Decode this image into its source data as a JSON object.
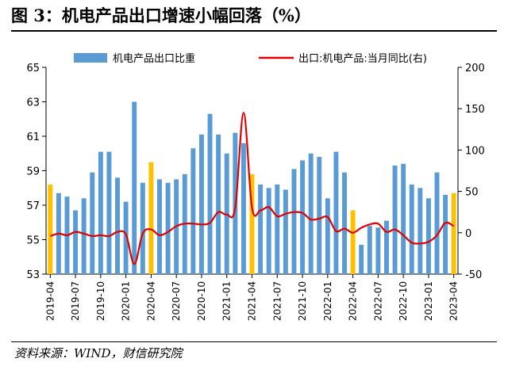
{
  "figure": {
    "title": "图 3：机电产品出口增速小幅回落（%）",
    "source": "资料来源：WIND，财信研究院"
  },
  "colors": {
    "bar": "#5B9BD5",
    "bar_highlight": "#FFC000",
    "line": "#E00000"
  },
  "chart_data": {
    "type": "bar",
    "categories": [
      "2019-04",
      "2019-05",
      "2019-06",
      "2019-07",
      "2019-08",
      "2019-09",
      "2019-10",
      "2019-11",
      "2019-12",
      "2020-01",
      "2020-02",
      "2020-03",
      "2020-04",
      "2020-05",
      "2020-06",
      "2020-07",
      "2020-08",
      "2020-09",
      "2020-10",
      "2020-11",
      "2020-12",
      "2021-01",
      "2021-02",
      "2021-03",
      "2021-04",
      "2021-05",
      "2021-06",
      "2021-07",
      "2021-08",
      "2021-09",
      "2021-10",
      "2021-11",
      "2021-12",
      "2022-01",
      "2022-02",
      "2022-03",
      "2022-04",
      "2022-05",
      "2022-06",
      "2022-07",
      "2022-08",
      "2022-09",
      "2022-10",
      "2022-11",
      "2022-12",
      "2023-01",
      "2023-02",
      "2023-03",
      "2023-04"
    ],
    "x_tick_labels": [
      "2019-04",
      "2019-07",
      "2019-10",
      "2020-01",
      "2020-04",
      "2020-07",
      "2020-10",
      "2021-01",
      "2021-04",
      "2021-07",
      "2021-10",
      "2022-01",
      "2022-04",
      "2022-07",
      "2022-10",
      "2023-01",
      "2023-04"
    ],
    "highlight_categories": [
      "2019-04",
      "2020-04",
      "2021-04",
      "2022-04",
      "2023-04"
    ],
    "series": [
      {
        "name": "机电产品出口比重",
        "axis": "left",
        "kind": "bar",
        "values": [
          58.2,
          57.7,
          57.5,
          56.7,
          57.4,
          58.9,
          60.1,
          60.1,
          58.6,
          57.2,
          63.0,
          58.3,
          59.5,
          58.5,
          58.3,
          58.5,
          58.8,
          60.3,
          61.1,
          62.3,
          61.1,
          60.0,
          61.2,
          60.6,
          58.8,
          58.2,
          58.0,
          58.2,
          57.9,
          59.1,
          59.6,
          60.0,
          59.8,
          57.4,
          60.1,
          58.9,
          56.7,
          54.7,
          55.8,
          55.7,
          56.1,
          59.3,
          59.4,
          58.2,
          58.0,
          57.4,
          58.9,
          57.6,
          57.7
        ]
      },
      {
        "name": "出口:机电产品:当月同比(右)",
        "axis": "right",
        "kind": "line",
        "values": [
          -4,
          -1,
          -3,
          1,
          -1,
          -4,
          -3,
          -4,
          1,
          -2,
          -38,
          -1,
          4,
          -3,
          1,
          8,
          11,
          11,
          10,
          12,
          25,
          22,
          30,
          145,
          30,
          27,
          31,
          20,
          23,
          25,
          24,
          16,
          17,
          19,
          2,
          5,
          0,
          6,
          10,
          11,
          1,
          4,
          -3,
          -12,
          -13,
          -11,
          -3,
          12,
          8
        ]
      }
    ],
    "y_left": {
      "min": 53,
      "max": 65,
      "ticks": [
        53,
        55,
        57,
        59,
        61,
        63,
        65
      ]
    },
    "y_right": {
      "min": -50,
      "max": 200,
      "ticks": [
        -50,
        0,
        50,
        100,
        150,
        200
      ]
    },
    "legend_position": "top",
    "grid": false
  }
}
